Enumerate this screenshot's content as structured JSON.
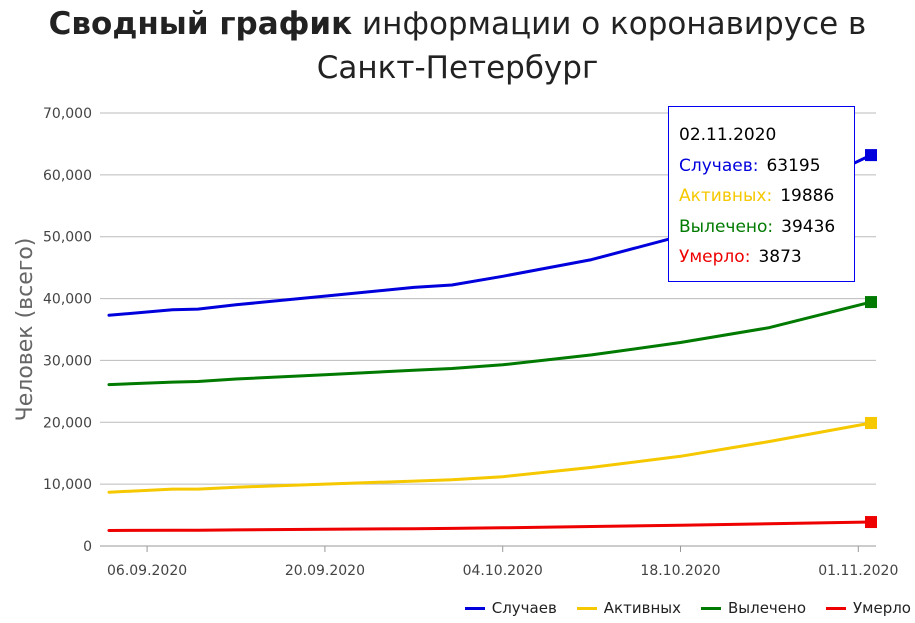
{
  "title": {
    "bold": "Сводный график",
    "rest": " информации о коронавирусе в Санкт-Петербург"
  },
  "chart_data": {
    "type": "line",
    "ylabel": "Человек (всего)",
    "xlabel": "",
    "ylim": [
      0,
      70000
    ],
    "yticks": [
      "0",
      "10,000",
      "20,000",
      "30,000",
      "40,000",
      "50,000",
      "60,000",
      "70,000"
    ],
    "xticks": [
      "06.09.2020",
      "20.09.2020",
      "04.10.2020",
      "18.10.2020",
      "01.11.2020"
    ],
    "xtick_dates": [
      "2020-09-06",
      "2020-09-20",
      "2020-10-04",
      "2020-10-18",
      "2020-11-01"
    ],
    "x": [
      "2020-09-03",
      "2020-09-08",
      "2020-09-10",
      "2020-09-13",
      "2020-09-20",
      "2020-09-27",
      "2020-09-30",
      "2020-10-04",
      "2020-10-11",
      "2020-10-18",
      "2020-10-25",
      "2020-11-02"
    ],
    "series": [
      {
        "name": "Случаев",
        "color": "#0000dd",
        "values": [
          37300,
          38200,
          38300,
          39000,
          40400,
          41800,
          42200,
          43600,
          46300,
          50100,
          55400,
          63195
        ]
      },
      {
        "name": "Активных",
        "color": "#f5c800",
        "values": [
          8700,
          9200,
          9200,
          9500,
          10000,
          10500,
          10700,
          11200,
          12700,
          14500,
          16900,
          19886
        ]
      },
      {
        "name": "Вылечено",
        "color": "#007a00",
        "values": [
          26100,
          26500,
          26600,
          27000,
          27700,
          28400,
          28700,
          29300,
          30900,
          32900,
          35300,
          39436
        ]
      },
      {
        "name": "Умерло",
        "color": "#ee0000",
        "values": [
          2500,
          2550,
          2560,
          2600,
          2700,
          2800,
          2850,
          2950,
          3150,
          3350,
          3600,
          3873
        ]
      }
    ],
    "grid": true,
    "legend_position": "bottom-right"
  },
  "tooltip": {
    "date": "02.11.2020",
    "rows": [
      {
        "label": "Случаев:",
        "value": "63195",
        "color": "#0000dd"
      },
      {
        "label": "Активных:",
        "value": "19886",
        "color": "#f5c800"
      },
      {
        "label": "Вылечено:",
        "value": "39436",
        "color": "#007a00"
      },
      {
        "label": "Умерло:",
        "value": "3873",
        "color": "#ee0000"
      }
    ]
  },
  "legend": {
    "items": [
      {
        "label": "Случаев",
        "color": "#0000dd"
      },
      {
        "label": "Активных",
        "color": "#f5c800"
      },
      {
        "label": "Вылечено",
        "color": "#007a00"
      },
      {
        "label": "Умерло",
        "color": "#ee0000"
      }
    ]
  }
}
